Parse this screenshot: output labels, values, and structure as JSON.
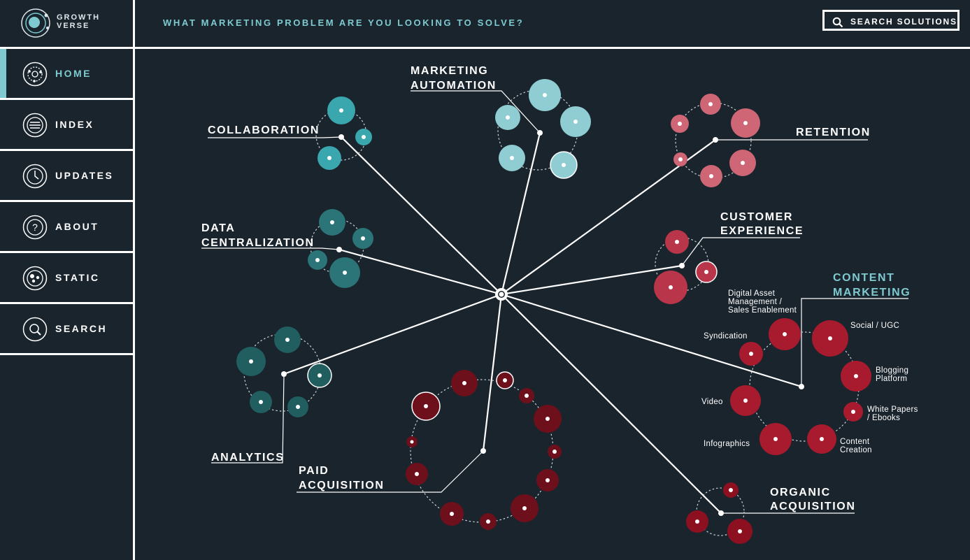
{
  "logo": {
    "line1": "GROWTH",
    "line2": "VERSE"
  },
  "header": {
    "question": "WHAT MARKETING PROBLEM ARE YOU LOOKING TO SOLVE?",
    "search_label": "SEARCH SOLUTIONS"
  },
  "nav": [
    {
      "label": "HOME",
      "icon": "home-orbit-icon",
      "active": true
    },
    {
      "label": "INDEX",
      "icon": "list-icon"
    },
    {
      "label": "UPDATES",
      "icon": "clock-icon"
    },
    {
      "label": "ABOUT",
      "icon": "question-icon"
    },
    {
      "label": "STATIC",
      "icon": "dots-icon"
    },
    {
      "label": "SEARCH",
      "icon": "search-icon"
    }
  ],
  "colors": {
    "background": "#1a242d",
    "accent": "#7ecad0",
    "teal_light": "#8fcdd3",
    "teal": "#3aa6ae",
    "teal_dark": "#2b7478",
    "pink": "#cf6676",
    "red": "#b8354a",
    "crimson": "#a81a2e",
    "maroon": "#6e0f1c"
  },
  "categories": {
    "marketing_automation": {
      "line1": "MARKETING",
      "line2": "AUTOMATION"
    },
    "collaboration": {
      "line1": "COLLABORATION"
    },
    "retention": {
      "line1": "RETENTION"
    },
    "data_centralization": {
      "line1": "DATA",
      "line2": "CENTRALIZATION"
    },
    "customer_experience": {
      "line1": "CUSTOMER",
      "line2": "EXPERIENCE"
    },
    "content_marketing": {
      "line1": "CONTENT",
      "line2": "MARKETING"
    },
    "analytics": {
      "line1": "ANALYTICS"
    },
    "paid_acquisition": {
      "line1": "PAID",
      "line2": "ACQUISITION"
    },
    "organic_acquisition": {
      "line1": "ORGANIC",
      "line2": "ACQUISITION"
    }
  },
  "content_marketing_items": {
    "digital_asset": {
      "line1": "Digital Asset",
      "line2": "Management /",
      "line3": "Sales Enablement"
    },
    "syndication": {
      "line1": "Syndication"
    },
    "social": {
      "line1": "Social / UGC"
    },
    "blogging": {
      "line1": "Blogging",
      "line2": "Platform"
    },
    "video": {
      "line1": "Video"
    },
    "white_papers": {
      "line1": "White Papers",
      "line2": "/ Ebooks"
    },
    "infographics": {
      "line1": "Infographics"
    },
    "content_creation": {
      "line1": "Content",
      "line2": "Creation"
    }
  }
}
